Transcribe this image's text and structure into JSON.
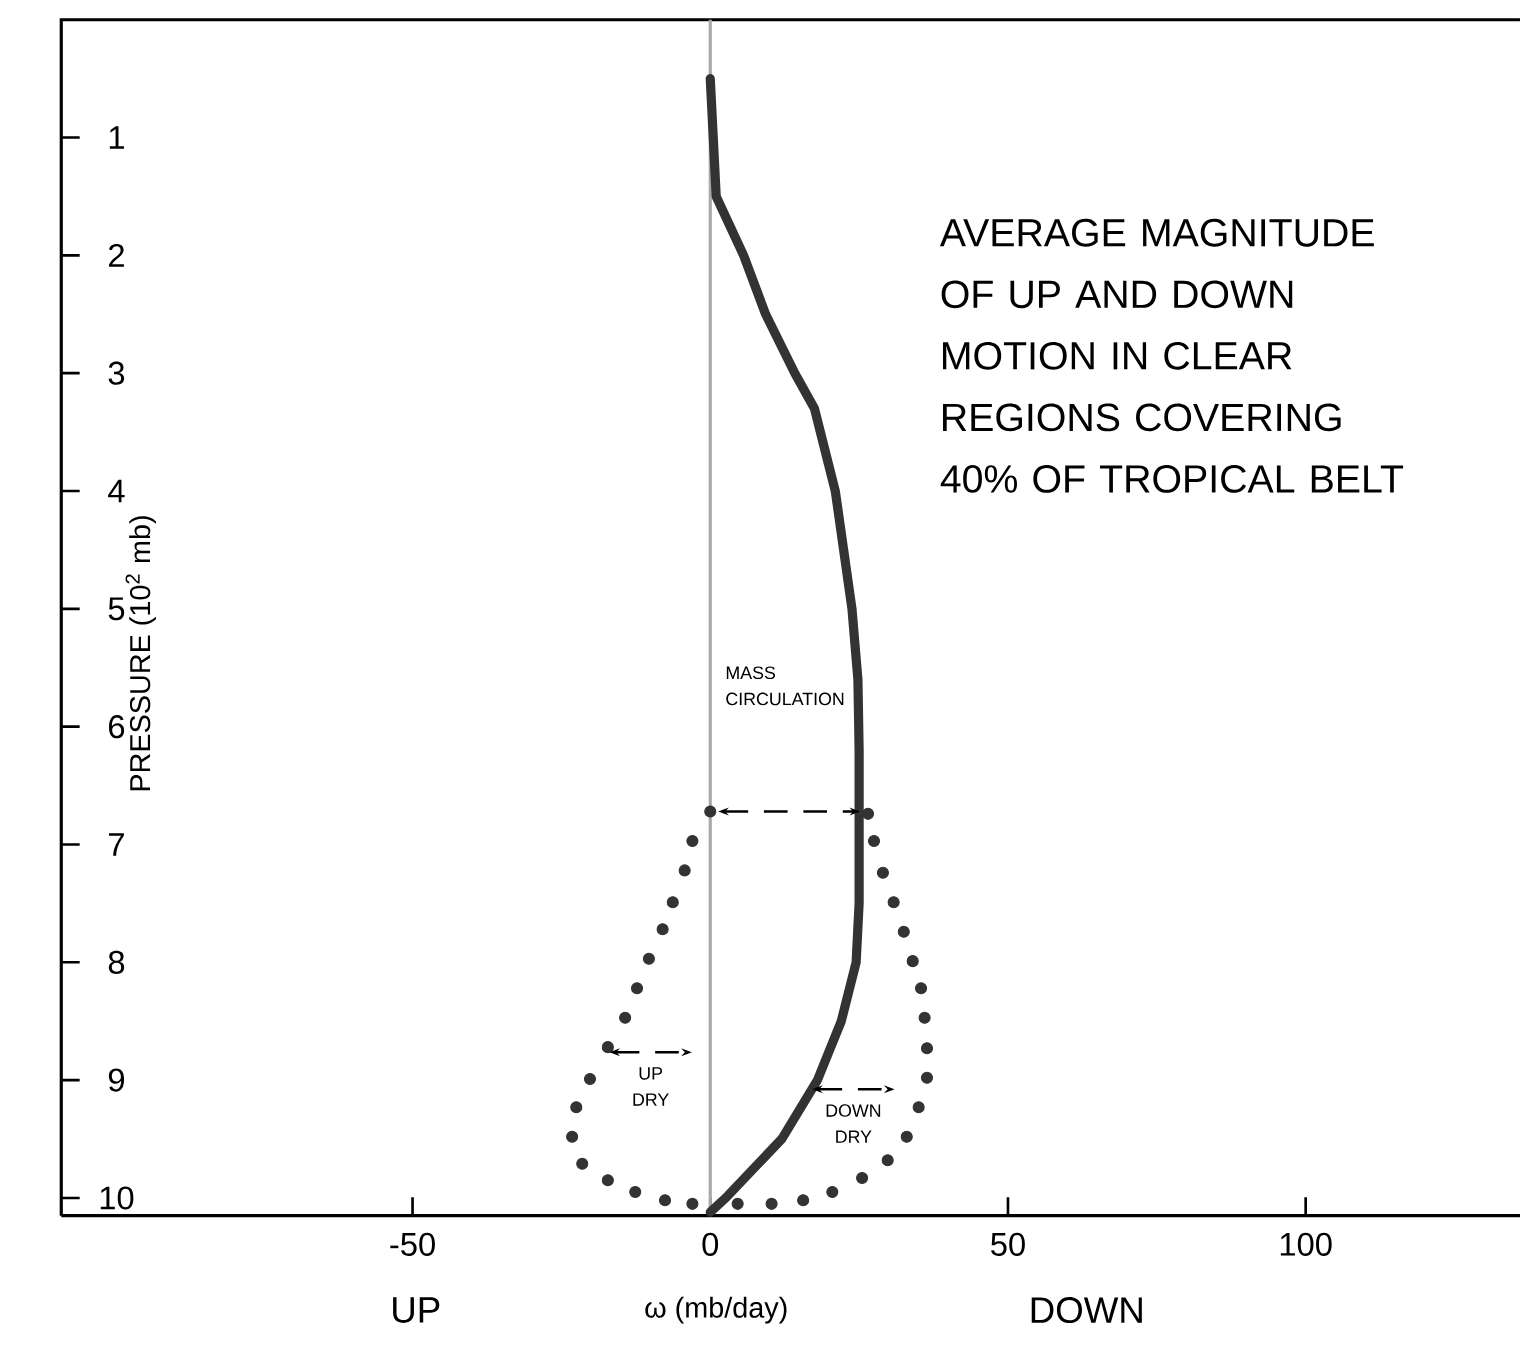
{
  "chart_data": {
    "type": "line",
    "xlabel": "ω (mb/day)",
    "ylabel": "PRESSURE (10$^{2}$ mb)",
    "xlim": [
      -109,
      136
    ],
    "ylim": [
      10.15,
      0
    ],
    "xticks": [
      -50,
      0,
      50,
      100
    ],
    "yticks": [
      1,
      2,
      3,
      4,
      5,
      6,
      7,
      8,
      9,
      10
    ],
    "series": [
      {
        "color": "#333333",
        "x": [
          0,
          0.5,
          1,
          5.6,
          9.3,
          14.2,
          17.5,
          21,
          23.8,
          24.8,
          25,
          25,
          24.5,
          22,
          18,
          12,
          2.6,
          0
        ],
        "values": [
          0.5,
          1,
          1.5,
          2,
          2.5,
          3,
          3.3,
          4,
          5,
          5.6,
          6.2,
          7.5,
          8,
          8.5,
          9,
          9.5,
          10,
          10.12
        ]
      },
      {
        "type": "scatter",
        "color": "#333333",
        "x": [
          0,
          -3,
          -4.3,
          -6.3,
          -8,
          -10.3,
          -12.3,
          -14.3,
          -17.2,
          -20.2,
          -22.5,
          -23.2,
          -21.5,
          -17.2,
          -12.6,
          -7.6,
          -3,
          4.6,
          10.3,
          15.6,
          20.5,
          25.5,
          29.8,
          33,
          35,
          36.4,
          36.4,
          36,
          35.4,
          34,
          32.5,
          30.8,
          29,
          27.5,
          26.5
        ],
        "values": [
          6.72,
          6.97,
          7.22,
          7.49,
          7.72,
          7.97,
          8.22,
          8.47,
          8.72,
          8.99,
          9.23,
          9.48,
          9.71,
          9.85,
          9.95,
          10.02,
          10.05,
          10.05,
          10.05,
          10.02,
          9.95,
          9.83,
          9.68,
          9.48,
          9.23,
          8.98,
          8.73,
          8.47,
          8.22,
          7.99,
          7.74,
          7.49,
          7.24,
          6.97,
          6.74
        ]
      }
    ],
    "ref_lines": [
      {
        "axis": "x",
        "value": 0,
        "color": "#a8a8a8"
      }
    ],
    "annotations": [
      "MASS CIRCULATION",
      "UP DRY",
      "DOWN DRY",
      "AVERAGE MAGNITUDE OF UP AND DOWN MOTION IN CLEAR REGIONS COVERING 40% OF TROPICAL BELT",
      "UP",
      "DOWN"
    ]
  }
}
